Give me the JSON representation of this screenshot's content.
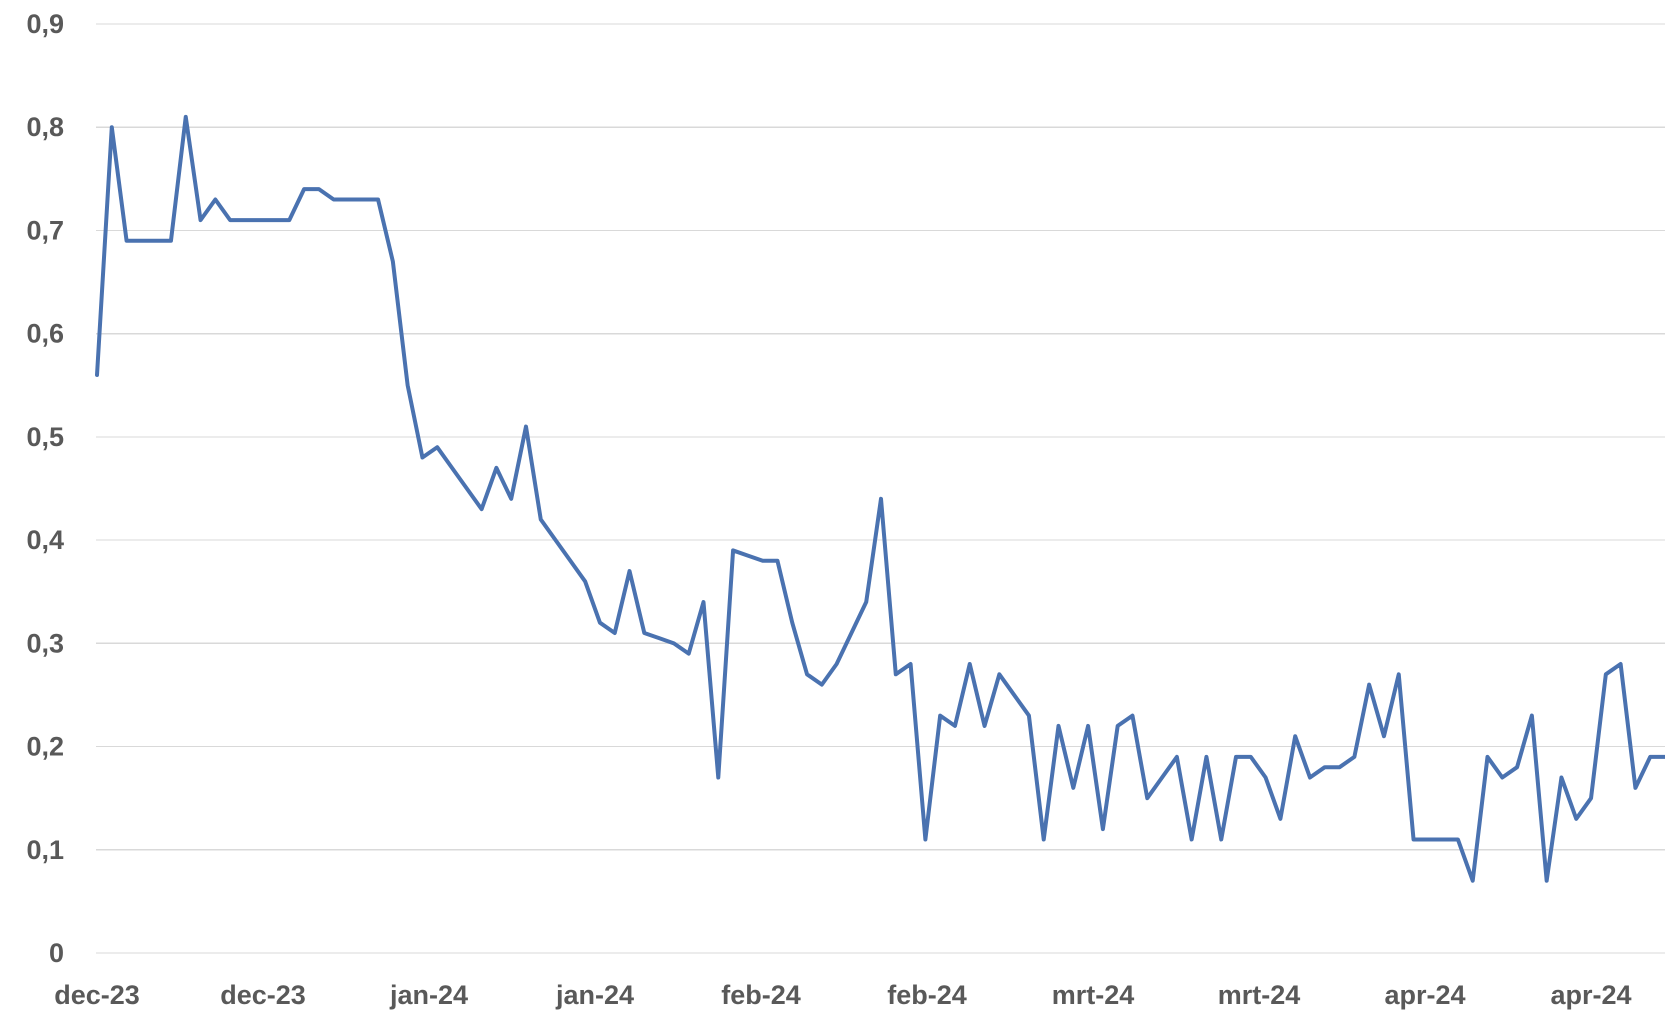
{
  "chart_data": {
    "type": "line",
    "title": "",
    "xlabel": "",
    "ylabel": "",
    "ylim": [
      0,
      0.9
    ],
    "y_ticks": [
      0,
      0.1,
      0.2,
      0.3,
      0.4,
      0.5,
      0.6,
      0.7,
      0.8,
      0.9
    ],
    "y_tick_labels": [
      "0",
      "0,1",
      "0,2",
      "0,3",
      "0,4",
      "0,5",
      "0,6",
      "0,7",
      "0,8",
      "0,9"
    ],
    "x_tick_labels": [
      "dec-23",
      "dec-23",
      "jan-24",
      "jan-24",
      "feb-24",
      "feb-24",
      "mrt-24",
      "mrt-24",
      "apr-24",
      "apr-24"
    ],
    "grid": true,
    "legend": "none",
    "line_color": "#4a72b0",
    "grid_color": "#d9d9d9",
    "series": [
      {
        "values": [
          0.56,
          0.8,
          0.69,
          0.69,
          0.69,
          0.69,
          0.81,
          0.71,
          0.73,
          0.71,
          0.71,
          0.71,
          0.71,
          0.71,
          0.74,
          0.74,
          0.73,
          0.73,
          0.73,
          0.73,
          0.67,
          0.55,
          0.48,
          0.49,
          0.47,
          0.45,
          0.43,
          0.47,
          0.44,
          0.51,
          0.42,
          0.4,
          0.38,
          0.36,
          0.32,
          0.31,
          0.37,
          0.31,
          0.305,
          0.3,
          0.29,
          0.34,
          0.17,
          0.39,
          0.385,
          0.38,
          0.38,
          0.32,
          0.27,
          0.26,
          0.28,
          0.31,
          0.34,
          0.44,
          0.27,
          0.28,
          0.11,
          0.23,
          0.22,
          0.28,
          0.22,
          0.27,
          0.25,
          0.23,
          0.11,
          0.22,
          0.16,
          0.22,
          0.12,
          0.22,
          0.23,
          0.15,
          0.17,
          0.19,
          0.11,
          0.19,
          0.11,
          0.19,
          0.19,
          0.17,
          0.13,
          0.21,
          0.17,
          0.18,
          0.18,
          0.19,
          0.26,
          0.21,
          0.27,
          0.11,
          0.11,
          0.11,
          0.11,
          0.07,
          0.19,
          0.17,
          0.18,
          0.23,
          0.07,
          0.17,
          0.13,
          0.15,
          0.27,
          0.28,
          0.16,
          0.19,
          0.19
        ]
      }
    ]
  }
}
